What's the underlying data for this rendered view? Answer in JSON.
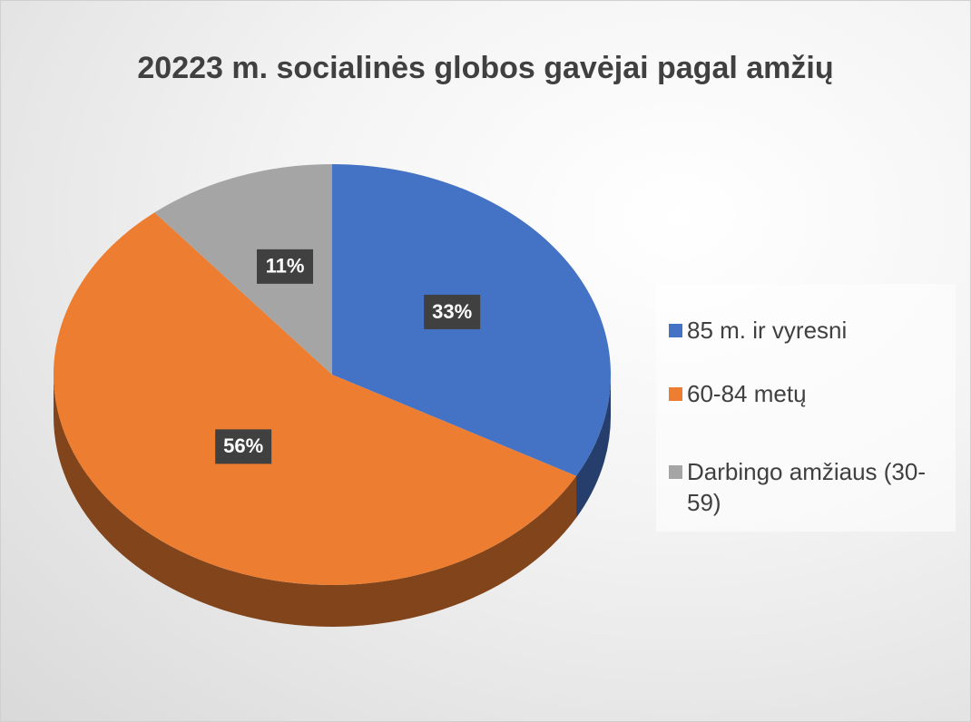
{
  "chart_data": {
    "type": "pie",
    "title": "20223 m. socialinės globos gavėjai pagal amžių",
    "categories": [
      "85 m. ir vyresni",
      "60-84 metų",
      "Darbingo amžiaus (30-59)"
    ],
    "values": [
      33,
      56,
      11
    ],
    "value_labels": [
      "33%",
      "56%",
      "11%"
    ],
    "colors": [
      "#4472c4",
      "#ed7d31",
      "#a5a5a5"
    ],
    "legend": "right"
  }
}
